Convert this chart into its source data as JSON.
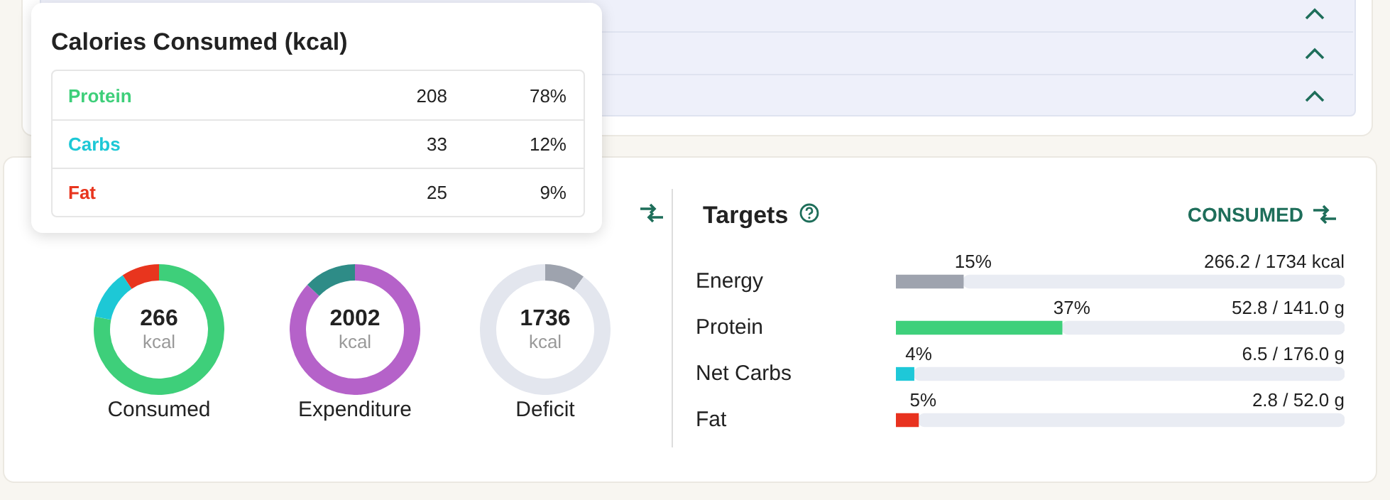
{
  "chart_data": [
    {
      "type": "other",
      "title": "Calories Consumed (kcal)",
      "colors": [
        "#3ecf7a",
        "#1dc8d6",
        "#e8351e"
      ],
      "annotations": [
        "Protein",
        "208",
        "78%",
        "Carbs",
        "33",
        "12%",
        "Fat",
        "25",
        "9%"
      ]
    },
    {
      "type": "donut",
      "xlabel": "Consumed",
      "categories": [
        null,
        null,
        null
      ],
      "values": [
        78.2,
        12.4,
        9.4
      ],
      "colors": [
        "#3ecf7a",
        "#1dc8d6",
        "#e8351e"
      ],
      "annotations": [
        "266",
        "kcal"
      ]
    },
    {
      "type": "donut",
      "xlabel": "Expenditure",
      "categories": [
        null,
        null
      ],
      "values": [
        87,
        13
      ],
      "colors": [
        "#b562c9",
        "#2e8c87"
      ],
      "annotations": [
        "2002",
        "kcal"
      ]
    },
    {
      "type": "donut",
      "xlabel": "Deficit",
      "categories": [
        null,
        null
      ],
      "values": [
        10,
        90
      ],
      "colors": [
        "#9ea3ae",
        "#e3e6ee"
      ],
      "annotations": [
        "1736",
        "kcal"
      ]
    },
    {
      "type": "bar",
      "orientation": "horizontal",
      "stacked": true,
      "title": "Targets",
      "subtitle": "CONSUMED",
      "categories": [
        "Energy",
        "Protein",
        "Net Carbs",
        "Fat"
      ],
      "xlim": [
        0,
        100
      ],
      "tick_labels": "y",
      "series": [
        {
          "colors": [
            "#9ea3ae",
            "#3ed07b",
            "#1ec8d8",
            "#e8321f"
          ],
          "values": [
            15,
            37,
            4,
            5
          ],
          "value_labels": [
            "15%",
            "37%",
            "4%",
            "5%"
          ]
        },
        {
          "color": "#e9ecf3",
          "values": [
            85,
            63,
            96,
            95
          ]
        }
      ],
      "annotations": [
        {
          "text": "266.2 / 1734 kcal",
          "y": "Energy"
        },
        {
          "text": "52.8 / 141.0 g",
          "y": "Protein"
        },
        {
          "text": "6.5 / 176.0 g",
          "y": "Net Carbs"
        },
        {
          "text": "2.8 / 52.0 g",
          "y": "Fat"
        }
      ]
    }
  ]
}
